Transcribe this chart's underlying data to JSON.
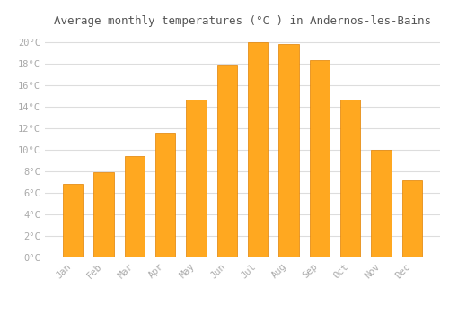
{
  "months": [
    "Jan",
    "Feb",
    "Mar",
    "Apr",
    "May",
    "Jun",
    "Jul",
    "Aug",
    "Sep",
    "Oct",
    "Nov",
    "Dec"
  ],
  "temperatures": [
    6.8,
    7.9,
    9.4,
    11.6,
    14.7,
    17.8,
    20.0,
    19.8,
    18.3,
    14.7,
    10.0,
    7.2
  ],
  "bar_color": "#FFA820",
  "bar_edge_color": "#E08000",
  "title": "Average monthly temperatures (°C ) in Andernos-les-Bains",
  "ylim": [
    0,
    21
  ],
  "yticks": [
    0,
    2,
    4,
    6,
    8,
    10,
    12,
    14,
    16,
    18,
    20
  ],
  "ytick_labels": [
    "0°C",
    "2°C",
    "4°C",
    "6°C",
    "8°C",
    "10°C",
    "12°C",
    "14°C",
    "16°C",
    "18°C",
    "20°C"
  ],
  "background_color": "#ffffff",
  "grid_color": "#dddddd",
  "title_fontsize": 9,
  "tick_fontsize": 7.5,
  "bar_width": 0.65,
  "tick_color": "#aaaaaa",
  "title_color": "#555555"
}
